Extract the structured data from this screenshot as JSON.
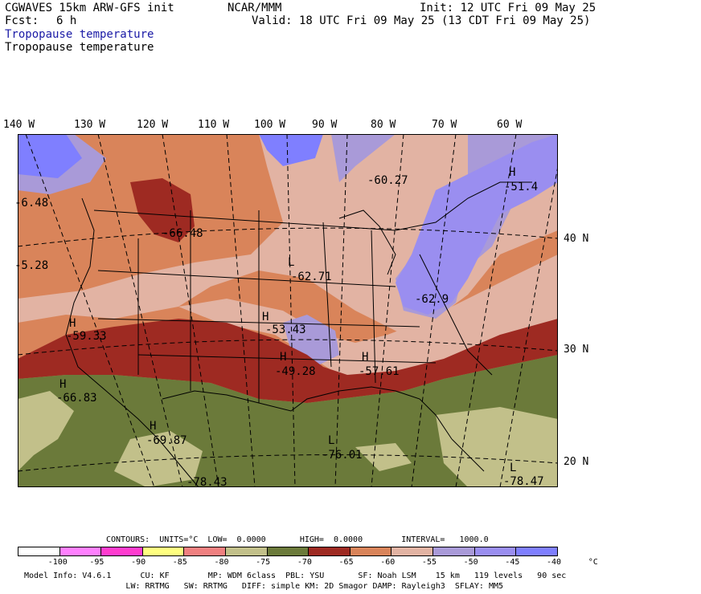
{
  "header": {
    "model": "CGWAVES 15km ARW-GFS init",
    "org": "NCAR/MMM",
    "init": "Init: 12 UTC Fri 09 May 25",
    "fcst_label": "Fcst:",
    "fcst_value": "6 h",
    "valid": "Valid: 18 UTC Fri 09 May 25 (13 CDT Fri 09 May 25)",
    "field_title_1": "Tropopause temperature",
    "field_title_2": "Tropopause temperature"
  },
  "map": {
    "longitude_labels": [
      "140 W",
      "130 W",
      "120 W",
      "110 W",
      "100 W",
      "90 W",
      "80 W",
      "70 W",
      "60 W"
    ],
    "latitude_labels": [
      "40 N",
      "30 N",
      "20 N"
    ],
    "field_labels": [
      {
        "marker": "",
        "value": "-60.27"
      },
      {
        "marker": "H",
        "value": "-51.4"
      },
      {
        "marker": "",
        "value": "-6.48"
      },
      {
        "marker": "",
        "value": "-66.48"
      },
      {
        "marker": "",
        "value": "-5.28"
      },
      {
        "marker": "L",
        "value": "-62.71"
      },
      {
        "marker": "",
        "value": "-62.9"
      },
      {
        "marker": "H",
        "value": "-59.33"
      },
      {
        "marker": "H",
        "value": "-53.43"
      },
      {
        "marker": "H",
        "value": "-49.28"
      },
      {
        "marker": "H",
        "value": "-57.61"
      },
      {
        "marker": "H",
        "value": "-66.83"
      },
      {
        "marker": "H",
        "value": "-69.87"
      },
      {
        "marker": "L",
        "value": "-76.01"
      },
      {
        "marker": "",
        "value": "-78.43"
      },
      {
        "marker": "L",
        "value": "-78.47"
      }
    ],
    "colors": {
      "lt_minus75": "#6b7a3a",
      "minus75_70": "#c2c08a",
      "minus70_65": "#9e2a22",
      "minus65_60": "#d9845a",
      "minus60_55": "#e2b3a3",
      "minus55_50": "#a99ad8",
      "minus50_45": "#9a8ef0",
      "minus45_40": "#7f7fff"
    }
  },
  "legend": {
    "contours": "CONTOURS:  UNITS=°C  LOW=  0.0000       HIGH=  0.0000        INTERVAL=   1000.0",
    "swatches": [
      "#ffffff",
      "#ff80ff",
      "#ff3ccf",
      "#ffff80",
      "#f08080",
      "#c2c08a",
      "#6b7a3a",
      "#9e2a22",
      "#d9845a",
      "#e2b3a3",
      "#a99ad8",
      "#9a8ef0",
      "#7f7fff"
    ],
    "ticks": [
      "-100",
      "-95",
      "-90",
      "-85",
      "-80",
      "-75",
      "-70",
      "-65",
      "-60",
      "-55",
      "-50",
      "-45",
      "-40",
      "°C"
    ]
  },
  "footer": {
    "line1": "Model Info: V4.6.1      CU: KF        MP: WDM 6class  PBL: YSU       SF: Noah LSM    15 km   119 levels   90 sec",
    "line2": "                     LW: RRTMG   SW: RRTMG   DIFF: simple KM: 2D Smagor DAMP: Rayleigh3  SFLAY: MM5"
  }
}
